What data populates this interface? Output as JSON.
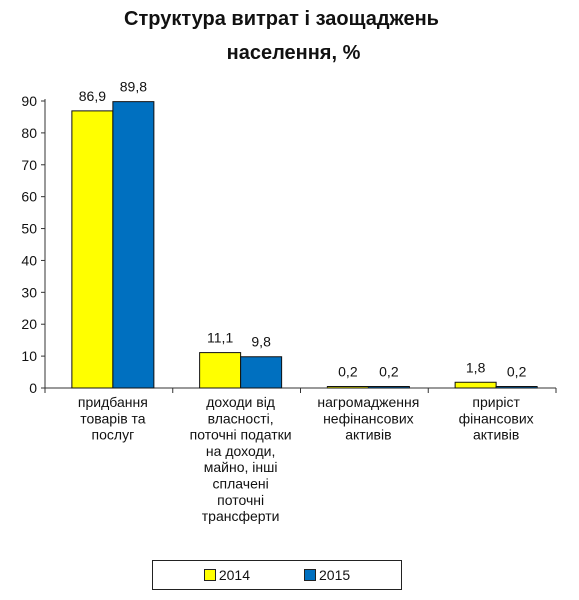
{
  "chart_data": {
    "type": "bar",
    "title": "Структура витрат і заощаджень населення, %",
    "title_lines": [
      "Структура витрат і заощаджень",
      "населення, %"
    ],
    "categories": [
      [
        "придбання",
        "товарів та",
        "послуг"
      ],
      [
        "доходи від",
        "власності,",
        "поточні податки",
        "на доходи,",
        "майно, інші",
        "сплачені",
        "поточні",
        "трансферти"
      ],
      [
        "нагромадження",
        "нефінансових",
        "активів"
      ],
      [
        "приріст",
        "фінансових",
        "активів"
      ]
    ],
    "series": [
      {
        "name": "2014",
        "color": "#ffff00",
        "values": [
          86.9,
          11.1,
          0.2,
          1.8
        ],
        "labels": [
          "86,9",
          "11,1",
          "0,2",
          "1,8"
        ]
      },
      {
        "name": "2015",
        "color": "#0070c0",
        "values": [
          89.8,
          9.8,
          0.2,
          0.2
        ],
        "labels": [
          "89,8",
          "9,8",
          "0,2",
          "0,2"
        ]
      }
    ],
    "ylim": [
      0,
      90
    ],
    "yticks": [
      0,
      10,
      20,
      30,
      40,
      50,
      60,
      70,
      80,
      90
    ],
    "grid": false,
    "legend_position": "bottom"
  }
}
